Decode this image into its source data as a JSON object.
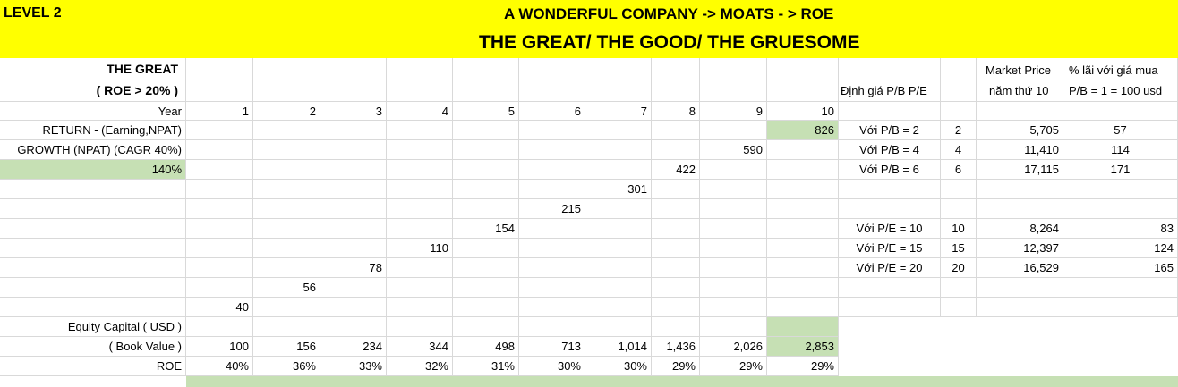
{
  "header": {
    "level": "LEVEL 2",
    "title": "A WONDERFUL COMPANY -> MOATS - > ROE",
    "subtitle": "THE GREAT/ THE GOOD/ THE GRUESOME"
  },
  "left": {
    "great_title": "THE GREAT",
    "great_roe": "( ROE > 20% )",
    "year_label": "Year",
    "return_label": "RETURN - (Earning,NPAT)",
    "growth_label": "GROWTH (NPAT) (CAGR 40%)",
    "growth_pct": "140%",
    "equity_label": "Equity Capital ( USD )",
    "book_label": "( Book Value )",
    "roe_label": "ROE"
  },
  "years": [
    "1",
    "2",
    "3",
    "4",
    "5",
    "6",
    "7",
    "8",
    "9",
    "10"
  ],
  "npat": [
    "40",
    "56",
    "78",
    "110",
    "154",
    "215",
    "301",
    "422",
    "590",
    "826"
  ],
  "book_value": [
    "100",
    "156",
    "234",
    "344",
    "498",
    "713",
    "1,014",
    "1,436",
    "2,026",
    "2,853"
  ],
  "roe": [
    "40%",
    "36%",
    "33%",
    "32%",
    "31%",
    "30%",
    "30%",
    "29%",
    "29%",
    "29%"
  ],
  "valuation": {
    "header_label": "Định giá P/B P/E",
    "market_price_header_1": "Market Price",
    "market_price_header_2": "năm thứ 10",
    "profit_header_1": "% lãi với giá mua",
    "profit_header_2": "P/B = 1 = 100 usd",
    "pb_rows": [
      {
        "label": "Với P/B = 2",
        "multiple": "2",
        "price": "5,705",
        "profit": "57"
      },
      {
        "label": "Với P/B = 4",
        "multiple": "4",
        "price": "11,410",
        "profit": "114"
      },
      {
        "label": "Với P/B = 6",
        "multiple": "6",
        "price": "17,115",
        "profit": "171"
      }
    ],
    "pe_rows": [
      {
        "label": "Với P/E = 10",
        "multiple": "10",
        "price": "8,264",
        "profit": "83"
      },
      {
        "label": "Với P/E = 15",
        "multiple": "15",
        "price": "12,397",
        "profit": "124"
      },
      {
        "label": "Với P/E = 20",
        "multiple": "20",
        "price": "16,529",
        "profit": "165"
      }
    ]
  },
  "colors": {
    "header_bg": "#ffff00",
    "highlight": "#c6e0b4",
    "gridline": "#d9d9d9"
  }
}
